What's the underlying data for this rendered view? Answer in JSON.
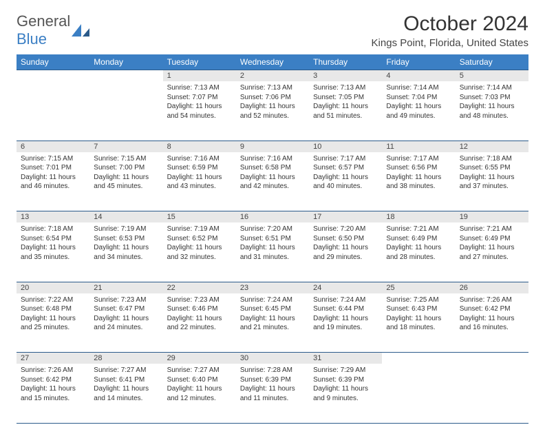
{
  "brand": {
    "part1": "General",
    "part2": "Blue"
  },
  "title": "October 2024",
  "location": "Kings Point, Florida, United States",
  "colors": {
    "header_bg": "#3b7fc4",
    "header_text": "#ffffff",
    "daynum_bg": "#e8e8e8",
    "border": "#2a5a8a",
    "text": "#333333"
  },
  "weekdays": [
    "Sunday",
    "Monday",
    "Tuesday",
    "Wednesday",
    "Thursday",
    "Friday",
    "Saturday"
  ],
  "weeks": [
    [
      null,
      null,
      {
        "n": "1",
        "sr": "7:13 AM",
        "ss": "7:07 PM",
        "dl": "11 hours and 54 minutes."
      },
      {
        "n": "2",
        "sr": "7:13 AM",
        "ss": "7:06 PM",
        "dl": "11 hours and 52 minutes."
      },
      {
        "n": "3",
        "sr": "7:13 AM",
        "ss": "7:05 PM",
        "dl": "11 hours and 51 minutes."
      },
      {
        "n": "4",
        "sr": "7:14 AM",
        "ss": "7:04 PM",
        "dl": "11 hours and 49 minutes."
      },
      {
        "n": "5",
        "sr": "7:14 AM",
        "ss": "7:03 PM",
        "dl": "11 hours and 48 minutes."
      }
    ],
    [
      {
        "n": "6",
        "sr": "7:15 AM",
        "ss": "7:01 PM",
        "dl": "11 hours and 46 minutes."
      },
      {
        "n": "7",
        "sr": "7:15 AM",
        "ss": "7:00 PM",
        "dl": "11 hours and 45 minutes."
      },
      {
        "n": "8",
        "sr": "7:16 AM",
        "ss": "6:59 PM",
        "dl": "11 hours and 43 minutes."
      },
      {
        "n": "9",
        "sr": "7:16 AM",
        "ss": "6:58 PM",
        "dl": "11 hours and 42 minutes."
      },
      {
        "n": "10",
        "sr": "7:17 AM",
        "ss": "6:57 PM",
        "dl": "11 hours and 40 minutes."
      },
      {
        "n": "11",
        "sr": "7:17 AM",
        "ss": "6:56 PM",
        "dl": "11 hours and 38 minutes."
      },
      {
        "n": "12",
        "sr": "7:18 AM",
        "ss": "6:55 PM",
        "dl": "11 hours and 37 minutes."
      }
    ],
    [
      {
        "n": "13",
        "sr": "7:18 AM",
        "ss": "6:54 PM",
        "dl": "11 hours and 35 minutes."
      },
      {
        "n": "14",
        "sr": "7:19 AM",
        "ss": "6:53 PM",
        "dl": "11 hours and 34 minutes."
      },
      {
        "n": "15",
        "sr": "7:19 AM",
        "ss": "6:52 PM",
        "dl": "11 hours and 32 minutes."
      },
      {
        "n": "16",
        "sr": "7:20 AM",
        "ss": "6:51 PM",
        "dl": "11 hours and 31 minutes."
      },
      {
        "n": "17",
        "sr": "7:20 AM",
        "ss": "6:50 PM",
        "dl": "11 hours and 29 minutes."
      },
      {
        "n": "18",
        "sr": "7:21 AM",
        "ss": "6:49 PM",
        "dl": "11 hours and 28 minutes."
      },
      {
        "n": "19",
        "sr": "7:21 AM",
        "ss": "6:49 PM",
        "dl": "11 hours and 27 minutes."
      }
    ],
    [
      {
        "n": "20",
        "sr": "7:22 AM",
        "ss": "6:48 PM",
        "dl": "11 hours and 25 minutes."
      },
      {
        "n": "21",
        "sr": "7:23 AM",
        "ss": "6:47 PM",
        "dl": "11 hours and 24 minutes."
      },
      {
        "n": "22",
        "sr": "7:23 AM",
        "ss": "6:46 PM",
        "dl": "11 hours and 22 minutes."
      },
      {
        "n": "23",
        "sr": "7:24 AM",
        "ss": "6:45 PM",
        "dl": "11 hours and 21 minutes."
      },
      {
        "n": "24",
        "sr": "7:24 AM",
        "ss": "6:44 PM",
        "dl": "11 hours and 19 minutes."
      },
      {
        "n": "25",
        "sr": "7:25 AM",
        "ss": "6:43 PM",
        "dl": "11 hours and 18 minutes."
      },
      {
        "n": "26",
        "sr": "7:26 AM",
        "ss": "6:42 PM",
        "dl": "11 hours and 16 minutes."
      }
    ],
    [
      {
        "n": "27",
        "sr": "7:26 AM",
        "ss": "6:42 PM",
        "dl": "11 hours and 15 minutes."
      },
      {
        "n": "28",
        "sr": "7:27 AM",
        "ss": "6:41 PM",
        "dl": "11 hours and 14 minutes."
      },
      {
        "n": "29",
        "sr": "7:27 AM",
        "ss": "6:40 PM",
        "dl": "11 hours and 12 minutes."
      },
      {
        "n": "30",
        "sr": "7:28 AM",
        "ss": "6:39 PM",
        "dl": "11 hours and 11 minutes."
      },
      {
        "n": "31",
        "sr": "7:29 AM",
        "ss": "6:39 PM",
        "dl": "11 hours and 9 minutes."
      },
      null,
      null
    ]
  ]
}
